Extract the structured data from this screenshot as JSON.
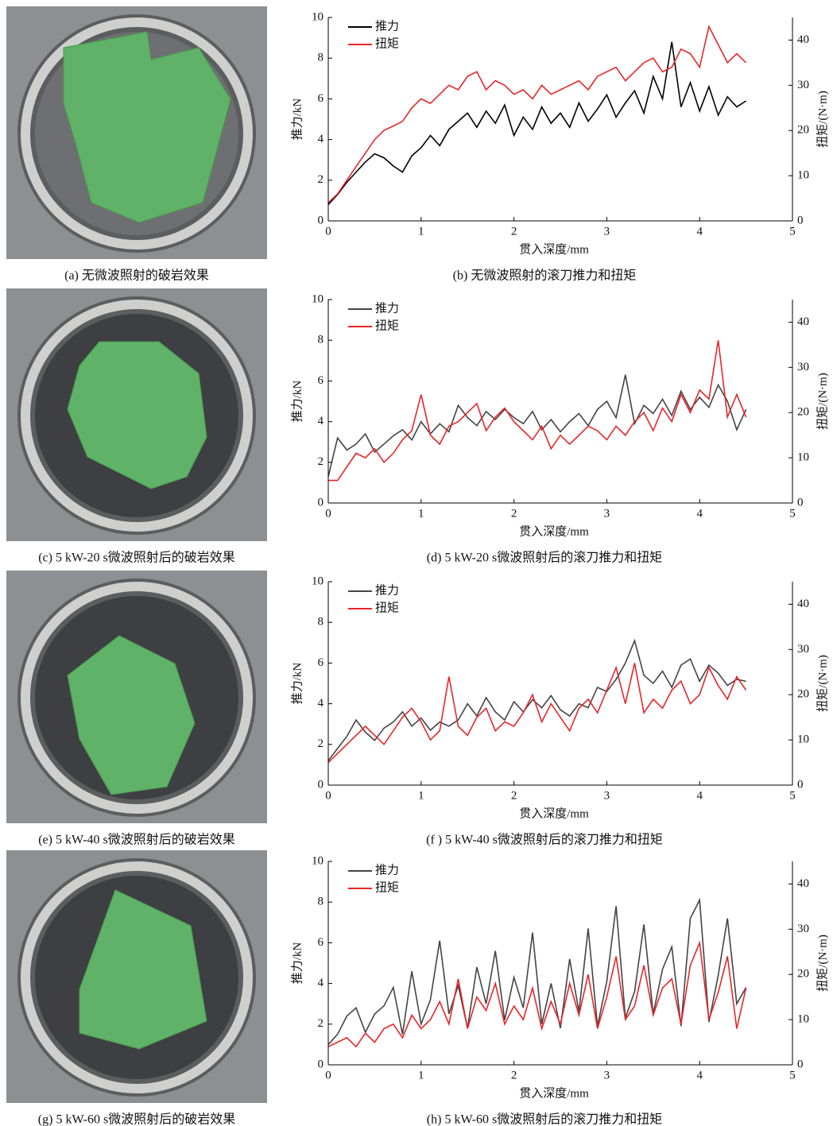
{
  "figures": [
    {
      "caption": "(a) 无微波照射的破岩效果"
    },
    {
      "caption": "(c) 5 kW-20 s微波照射后的破岩效果"
    },
    {
      "caption": "(e) 5 kW-40 s微波照射后的破岩效果"
    },
    {
      "caption": "(g) 5 kW-60 s微波照射后的破岩效果"
    }
  ],
  "chart_data": [
    {
      "type": "line",
      "caption": "(b) 无微波照射的滚刀推力和扭矩",
      "xlabel": "贯入深度/mm",
      "ylabel": "推力/kN",
      "y2label": "扭矩/(N·m)",
      "xlim": [
        0,
        5
      ],
      "xticks": [
        0,
        1,
        2,
        3,
        4,
        5
      ],
      "ylim": [
        0,
        10
      ],
      "yticks": [
        0,
        2,
        4,
        6,
        8,
        10
      ],
      "y2lim": [
        0,
        45
      ],
      "y2ticks": [
        0,
        10,
        20,
        30,
        40
      ],
      "x": [
        0,
        0.1,
        0.2,
        0.3,
        0.4,
        0.5,
        0.6,
        0.7,
        0.8,
        0.9,
        1,
        1.1,
        1.2,
        1.3,
        1.4,
        1.5,
        1.6,
        1.7,
        1.8,
        1.9,
        2,
        2.1,
        2.2,
        2.3,
        2.4,
        2.5,
        2.6,
        2.7,
        2.8,
        2.9,
        3,
        3.1,
        3.2,
        3.3,
        3.4,
        3.5,
        3.6,
        3.7,
        3.8,
        3.9,
        4,
        4.1,
        4.2,
        4.3,
        4.4,
        4.5
      ],
      "series": [
        {
          "name": "推力",
          "color": "#000000",
          "values": [
            0.8,
            1.3,
            1.9,
            2.4,
            2.9,
            3.3,
            3.1,
            2.7,
            2.4,
            3.2,
            3.6,
            4.2,
            3.7,
            4.5,
            4.9,
            5.3,
            4.6,
            5.4,
            4.8,
            5.7,
            4.2,
            5.1,
            4.5,
            5.6,
            4.8,
            5.3,
            4.6,
            5.8,
            4.9,
            5.5,
            6.2,
            5.1,
            5.8,
            6.4,
            5.3,
            7.1,
            6.0,
            8.8,
            5.6,
            6.8,
            5.4,
            6.6,
            5.2,
            6.1,
            5.6,
            5.9
          ]
        },
        {
          "name": "扭矩",
          "color": "#e8262a",
          "axis": "y2",
          "values": [
            4,
            6,
            9,
            12,
            15,
            18,
            20,
            21,
            22,
            25,
            27,
            26,
            28,
            30,
            29,
            32,
            33,
            29,
            31,
            30,
            28,
            29,
            27,
            30,
            28,
            29,
            30,
            31,
            29,
            32,
            33,
            34,
            31,
            33,
            35,
            36,
            33,
            34,
            38,
            37,
            34,
            43,
            39,
            35,
            37,
            35
          ]
        }
      ]
    },
    {
      "type": "line",
      "caption": "(d) 5 kW-20 s微波照射后的滚刀推力和扭矩",
      "xlabel": "贯入深度/mm",
      "ylabel": "推力/kN",
      "y2label": "扭矩/(N·m)",
      "xlim": [
        0,
        5
      ],
      "xticks": [
        0,
        1,
        2,
        3,
        4,
        5
      ],
      "ylim": [
        0,
        10
      ],
      "yticks": [
        0,
        2,
        4,
        6,
        8,
        10
      ],
      "y2lim": [
        0,
        45
      ],
      "y2ticks": [
        0,
        10,
        20,
        30,
        40
      ],
      "x": [
        0,
        0.1,
        0.2,
        0.3,
        0.4,
        0.5,
        0.6,
        0.7,
        0.8,
        0.9,
        1,
        1.1,
        1.2,
        1.3,
        1.4,
        1.5,
        1.6,
        1.7,
        1.8,
        1.9,
        2,
        2.1,
        2.2,
        2.3,
        2.4,
        2.5,
        2.6,
        2.7,
        2.8,
        2.9,
        3,
        3.1,
        3.2,
        3.3,
        3.4,
        3.5,
        3.6,
        3.7,
        3.8,
        3.9,
        4,
        4.1,
        4.2,
        4.3,
        4.4,
        4.5
      ],
      "series": [
        {
          "name": "推力",
          "color": "#444444",
          "values": [
            1.3,
            3.2,
            2.6,
            2.9,
            3.4,
            2.5,
            2.9,
            3.3,
            3.6,
            3.1,
            4.0,
            3.4,
            3.9,
            3.5,
            4.8,
            4.2,
            3.8,
            4.5,
            4.1,
            4.6,
            4.2,
            3.9,
            4.5,
            3.6,
            4.1,
            3.5,
            4.0,
            4.4,
            3.8,
            4.6,
            5.0,
            4.2,
            6.3,
            3.9,
            4.8,
            4.4,
            5.1,
            4.3,
            5.5,
            4.6,
            5.2,
            4.7,
            5.8,
            5.0,
            3.6,
            4.6
          ]
        },
        {
          "name": "扭矩",
          "color": "#e8262a",
          "axis": "y2",
          "values": [
            5,
            5,
            8,
            11,
            10,
            12,
            9,
            11,
            14,
            16,
            24,
            15,
            13,
            17,
            18,
            20,
            22,
            16,
            19,
            21,
            18,
            16,
            14,
            17,
            12,
            15,
            13,
            15,
            17,
            16,
            14,
            17,
            15,
            18,
            20,
            16,
            21,
            18,
            24,
            20,
            25,
            23,
            36,
            19,
            24,
            19
          ]
        }
      ]
    },
    {
      "type": "line",
      "caption": "(f ) 5 kW-40 s微波照射后的滚刀推力和扭矩",
      "xlabel": "贯入深度/mm",
      "ylabel": "推力/kN",
      "y2label": "扭矩/(N·m)",
      "xlim": [
        0,
        5
      ],
      "xticks": [
        0,
        1,
        2,
        3,
        4,
        5
      ],
      "ylim": [
        0,
        10
      ],
      "yticks": [
        0,
        2,
        4,
        6,
        8,
        10
      ],
      "y2lim": [
        0,
        45
      ],
      "y2ticks": [
        0,
        10,
        20,
        30,
        40
      ],
      "x": [
        0,
        0.1,
        0.2,
        0.3,
        0.4,
        0.5,
        0.6,
        0.7,
        0.8,
        0.9,
        1,
        1.1,
        1.2,
        1.3,
        1.4,
        1.5,
        1.6,
        1.7,
        1.8,
        1.9,
        2,
        2.1,
        2.2,
        2.3,
        2.4,
        2.5,
        2.6,
        2.7,
        2.8,
        2.9,
        3,
        3.1,
        3.2,
        3.3,
        3.4,
        3.5,
        3.6,
        3.7,
        3.8,
        3.9,
        4,
        4.1,
        4.2,
        4.3,
        4.4,
        4.5
      ],
      "series": [
        {
          "name": "推力",
          "color": "#444444",
          "values": [
            1.2,
            1.8,
            2.4,
            3.2,
            2.6,
            2.2,
            2.8,
            3.1,
            3.6,
            2.9,
            3.3,
            2.7,
            3.1,
            2.9,
            3.2,
            4.0,
            3.4,
            4.3,
            3.6,
            3.2,
            4.1,
            3.6,
            4.2,
            3.8,
            4.4,
            3.7,
            3.4,
            4.0,
            3.8,
            4.8,
            4.6,
            5.2,
            6.0,
            7.1,
            5.4,
            5.0,
            5.6,
            4.8,
            5.9,
            6.2,
            5.1,
            5.9,
            5.5,
            4.9,
            5.2,
            5.1
          ]
        },
        {
          "name": "扭矩",
          "color": "#e8262a",
          "axis": "y2",
          "values": [
            5,
            7,
            9,
            11,
            13,
            11,
            9,
            12,
            15,
            17,
            14,
            10,
            12,
            24,
            13,
            11,
            15,
            17,
            12,
            14,
            13,
            16,
            20,
            14,
            18,
            15,
            12,
            17,
            19,
            16,
            21,
            26,
            18,
            27,
            16,
            19,
            17,
            21,
            23,
            18,
            20,
            26,
            22,
            19,
            24,
            21
          ]
        }
      ]
    },
    {
      "type": "line",
      "caption": "(h) 5 kW-60 s微波照射后的滚刀推力和扭矩",
      "xlabel": "贯入深度/mm",
      "ylabel": "推力/kN",
      "y2label": "扭矩/(N·m)",
      "xlim": [
        0,
        5
      ],
      "xticks": [
        0,
        1,
        2,
        3,
        4,
        5
      ],
      "ylim": [
        0,
        10
      ],
      "yticks": [
        0,
        2,
        4,
        6,
        8,
        10
      ],
      "y2lim": [
        0,
        45
      ],
      "y2ticks": [
        0,
        10,
        20,
        30,
        40
      ],
      "x": [
        0,
        0.1,
        0.2,
        0.3,
        0.4,
        0.5,
        0.6,
        0.7,
        0.8,
        0.9,
        1,
        1.1,
        1.2,
        1.3,
        1.4,
        1.5,
        1.6,
        1.7,
        1.8,
        1.9,
        2,
        2.1,
        2.2,
        2.3,
        2.4,
        2.5,
        2.6,
        2.7,
        2.8,
        2.9,
        3,
        3.1,
        3.2,
        3.3,
        3.4,
        3.5,
        3.6,
        3.7,
        3.8,
        3.9,
        4,
        4.1,
        4.2,
        4.3,
        4.4,
        4.5
      ],
      "series": [
        {
          "name": "推力",
          "color": "#444444",
          "values": [
            1.0,
            1.5,
            2.4,
            2.8,
            1.6,
            2.5,
            2.9,
            3.8,
            1.5,
            4.6,
            2.0,
            3.2,
            6.1,
            2.5,
            3.9,
            1.8,
            4.8,
            3.0,
            5.6,
            2.2,
            4.3,
            2.8,
            6.5,
            2.0,
            4.0,
            1.8,
            5.2,
            2.6,
            6.7,
            1.9,
            4.1,
            7.8,
            2.3,
            3.6,
            6.9,
            2.5,
            4.7,
            5.8,
            1.9,
            7.2,
            8.1,
            2.1,
            4.4,
            7.2,
            3.0,
            3.8
          ]
        },
        {
          "name": "扭矩",
          "color": "#e8262a",
          "axis": "y2",
          "values": [
            4,
            5,
            6,
            4,
            7,
            5,
            8,
            9,
            6,
            11,
            8,
            10,
            14,
            9,
            19,
            8,
            15,
            12,
            18,
            9,
            13,
            10,
            17,
            8,
            14,
            9,
            18,
            11,
            20,
            8,
            15,
            24,
            10,
            13,
            22,
            11,
            17,
            19,
            9,
            22,
            27,
            10,
            16,
            24,
            8,
            17
          ]
        }
      ]
    }
  ]
}
